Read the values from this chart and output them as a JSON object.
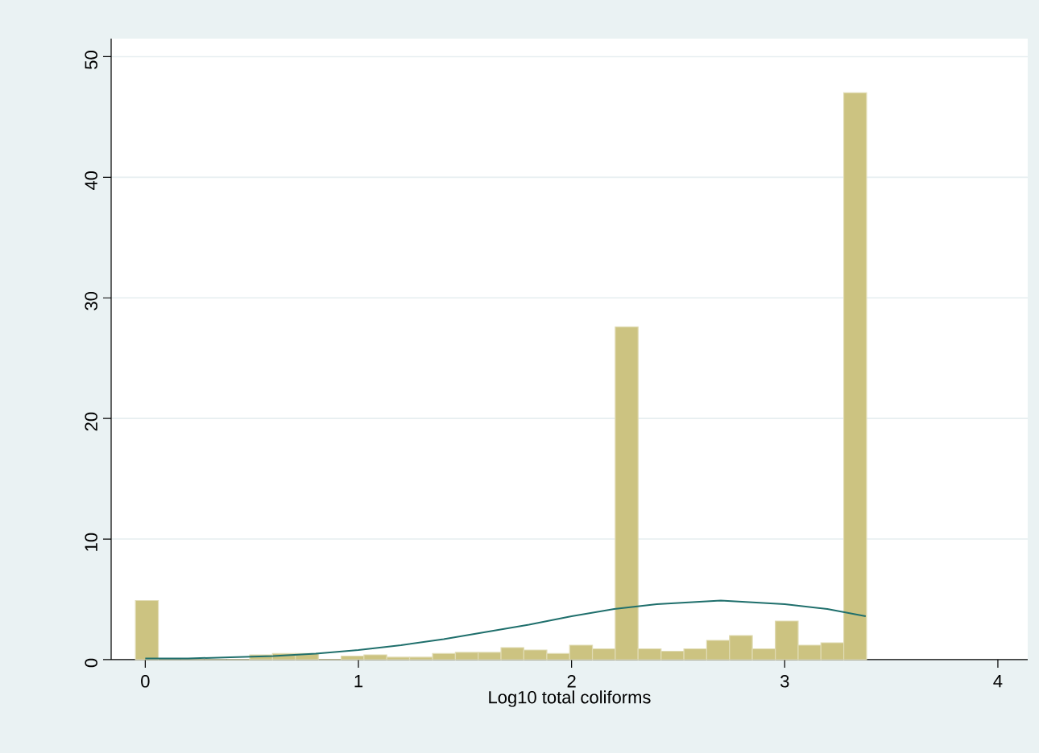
{
  "chart_data": {
    "type": "histogram",
    "xlabel": "Log10 total coliforms",
    "bins": [
      -0.046,
      0.061,
      0.168,
      0.276,
      0.383,
      0.49,
      0.597,
      0.704,
      0.812,
      0.919,
      1.026,
      1.133,
      1.24,
      1.348,
      1.455,
      1.562,
      1.669,
      1.776,
      1.884,
      1.991,
      2.098,
      2.205,
      2.312,
      2.42,
      2.527,
      2.634,
      2.741,
      2.848,
      2.956,
      3.063,
      3.17,
      3.277,
      3.384
    ],
    "values": [
      4.9,
      0,
      0,
      0,
      0,
      0.4,
      0.5,
      0.5,
      0,
      0.3,
      0.4,
      0.2,
      0.2,
      0.5,
      0.6,
      0.6,
      1.0,
      0.8,
      0.5,
      1.2,
      0.9,
      27.6,
      0.9,
      0.7,
      0.9,
      1.6,
      2.0,
      0.9,
      3.2,
      1.2,
      1.4,
      47.0
    ],
    "color": "#ccc381",
    "series": [
      {
        "type": "line",
        "color": "#1f6f6c",
        "x": [
          0,
          0.2,
          0.4,
          0.6,
          0.8,
          1.0,
          1.2,
          1.4,
          1.6,
          1.8,
          2.0,
          2.2,
          2.4,
          2.6,
          2.7,
          2.8,
          3.0,
          3.2,
          3.38
        ],
        "values": [
          0.1,
          0.1,
          0.2,
          0.3,
          0.5,
          0.8,
          1.2,
          1.7,
          2.3,
          2.9,
          3.6,
          4.2,
          4.6,
          4.8,
          4.9,
          4.8,
          4.6,
          4.2,
          3.6
        ]
      }
    ],
    "xlim": [
      -0.16,
      4.14
    ],
    "ylim": [
      0,
      51.5
    ],
    "xticks": [
      0,
      1,
      2,
      3,
      4
    ],
    "yticks": [
      0,
      10,
      20,
      30,
      40,
      50
    ],
    "grid": "y"
  }
}
